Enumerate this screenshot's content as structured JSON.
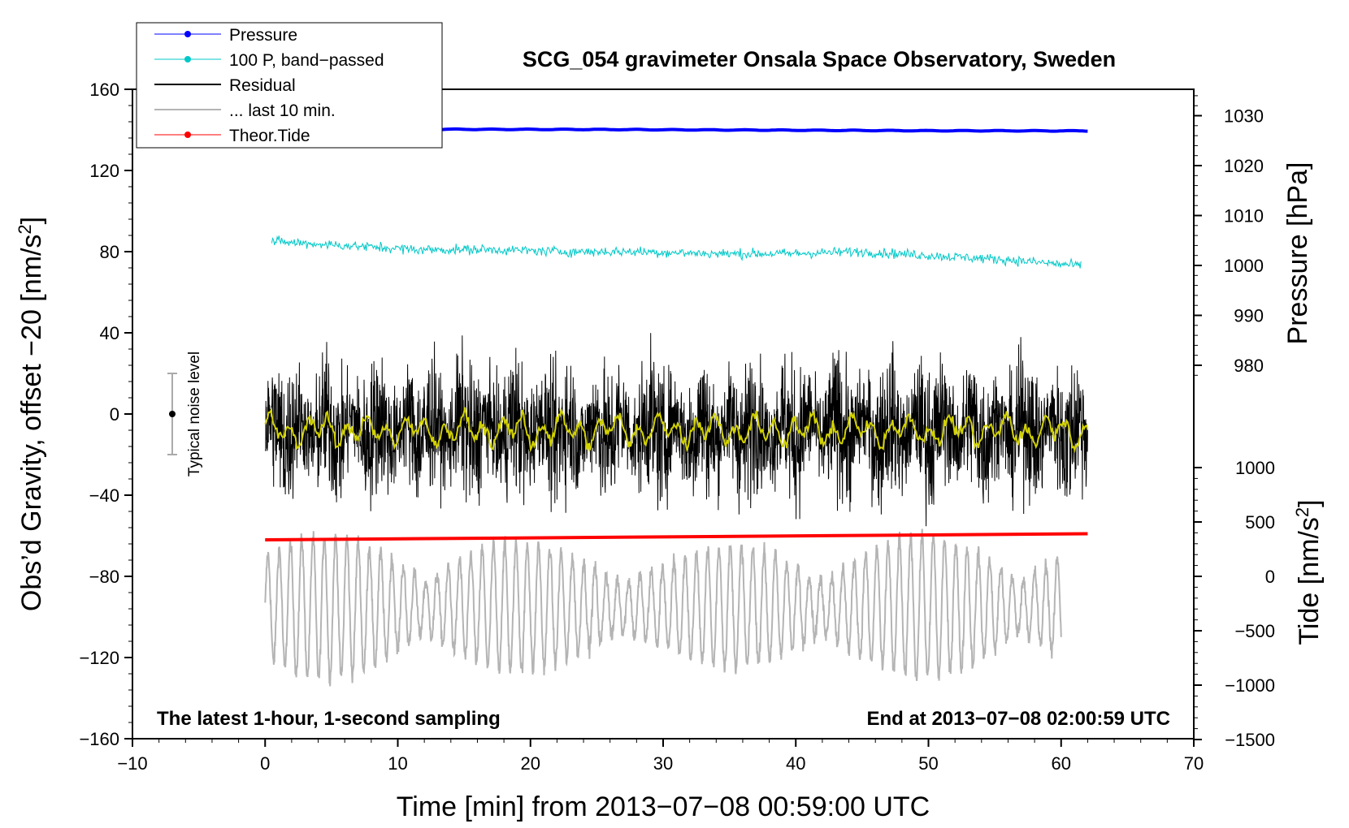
{
  "chart_data": {
    "type": "line",
    "title": "SCG_054 gravimeter Onsala Space Observatory, Sweden",
    "xlabel": "Time [min] from 2013−07−08 00:59:00 UTC",
    "ylabel_left": "Obs’d Gravity, offset −20 [nm/s²]",
    "ylabel_left_main": "Obs’d Gravity, offset −20 [nm/s",
    "ylabel_left_sup": "2",
    "ylabel_left_close": "]",
    "ylabel_right_pressure": "Pressure [hPa]",
    "ylabel_right_tide_main": "Tide [nm/s",
    "ylabel_right_tide_sup": "2",
    "ylabel_right_tide_close": "]",
    "xlim": [
      -10,
      70
    ],
    "ylim": [
      -160,
      160
    ],
    "x_ticks": [
      -10,
      0,
      10,
      20,
      30,
      40,
      50,
      60,
      70
    ],
    "x_tick_labels": [
      "−10",
      "0",
      "10",
      "20",
      "30",
      "40",
      "50",
      "60",
      "70"
    ],
    "y_ticks": [
      -160,
      -120,
      -80,
      -40,
      0,
      40,
      80,
      120,
      160
    ],
    "y_tick_labels": [
      "−160",
      "−120",
      "−80",
      "−40",
      "0",
      "40",
      "80",
      "120",
      "160"
    ],
    "pressure_ticks": [
      980,
      990,
      1000,
      1010,
      1020,
      1030
    ],
    "pressure_tick_labels": [
      "980",
      "990",
      "1000",
      "1010",
      "1020",
      "1030"
    ],
    "tide_ticks": [
      -1500,
      -1000,
      -500,
      0,
      500,
      1000
    ],
    "tide_tick_labels": [
      "−1500",
      "−1000",
      "−500",
      "0",
      "500",
      "1000"
    ],
    "annotation_left": "The latest 1-hour, 1-second sampling",
    "annotation_right": "End at 2013−07−08 02:00:59 UTC",
    "noise_label": "Typical noise level",
    "noise_bar": {
      "x": -7,
      "center": 0,
      "half_range": 20
    },
    "legend": [
      {
        "label": "Pressure",
        "color": "#0000ff",
        "marker": true
      },
      {
        "label": "100 P, band−passed",
        "color": "#00c8c8",
        "marker": true
      },
      {
        "label": "Residual",
        "color": "#000000",
        "marker": false
      },
      {
        "label": "... last 10 min.",
        "color": "#b4b4b4",
        "marker": false
      },
      {
        "label": "Theor.Tide",
        "color": "#ff0000",
        "marker": true
      }
    ],
    "series": [
      {
        "name": "Pressure",
        "color": "#0000ff",
        "x_range": [
          0,
          62
        ],
        "y_values": [
          140.4,
          140.3,
          140.2,
          139.9,
          139.6,
          139.5
        ]
      },
      {
        "name": "100 P, band-passed",
        "color": "#00c8c8",
        "x_range": [
          0.5,
          61.5
        ],
        "y_values": [
          85,
          83,
          81,
          81,
          80,
          80,
          79,
          79,
          80,
          78,
          76,
          73
        ]
      },
      {
        "name": "Residual",
        "color": "#000000",
        "x_range": [
          0,
          62
        ],
        "center": -8,
        "amplitude": 32
      },
      {
        "name": "Residual smoothed",
        "color": "#d2d200",
        "x_range": [
          0,
          62
        ],
        "center": -8,
        "amplitude": 8
      },
      {
        "name": "Theor.Tide",
        "color": "#ff0000",
        "x_range": [
          0,
          62
        ],
        "y_start": -62,
        "y_end": -59
      },
      {
        "name": "... last 10 min.",
        "color": "#b4b4b4",
        "x_range": [
          0,
          60
        ],
        "center": -95,
        "amplitude": 35,
        "period_min": 0.85
      }
    ]
  }
}
